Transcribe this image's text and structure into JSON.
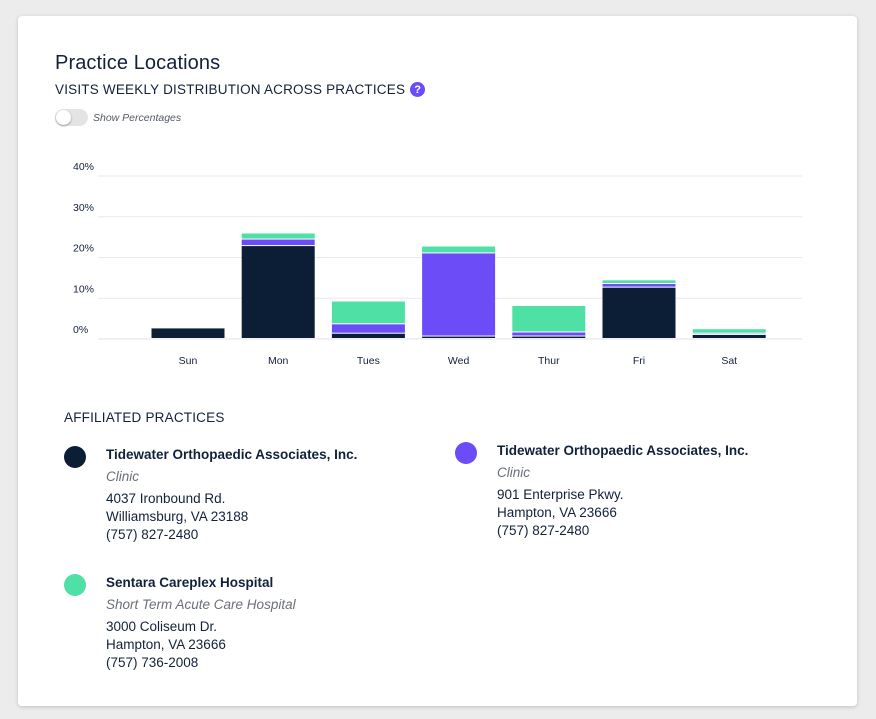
{
  "header": {
    "title": "Practice Locations",
    "subtitle": "VISITS WEEKLY DISTRIBUTION ACROSS PRACTICES",
    "help_glyph": "?",
    "help_icon": "question-circle-icon",
    "toggle_label": "Show Percentages",
    "toggle_on": false
  },
  "colors": {
    "navy": "#0b1e36",
    "purple": "#6b4cf6",
    "green": "#4fe0a5",
    "grid": "#e6e8ec"
  },
  "chart_data": {
    "type": "bar",
    "stacked": true,
    "categories": [
      "Sun",
      "Mon",
      "Tues",
      "Wed",
      "Thur",
      "Fri",
      "Sat"
    ],
    "yticks": [
      "40%",
      "30%",
      "20%",
      "10%",
      "0%"
    ],
    "ylim": [
      0,
      40
    ],
    "grid": true,
    "series": [
      {
        "color": "#0b1e36",
        "values": [
          2.6,
          22.8,
          1.3,
          0.6,
          0.6,
          12.6,
          1.0
        ]
      },
      {
        "color": "#6b4cf6",
        "values": [
          0.0,
          1.6,
          2.3,
          20.4,
          1.0,
          0.9,
          0.3
        ]
      },
      {
        "color": "#4fe0a5",
        "values": [
          0.0,
          1.5,
          5.6,
          1.7,
          6.5,
          0.9,
          1.1
        ]
      }
    ]
  },
  "affiliated": {
    "heading": "AFFILIATED PRACTICES",
    "practices": [
      {
        "color": "#0b1e36",
        "name": "Tidewater Orthopaedic Associates, Inc.",
        "type": "Clinic",
        "address1": "4037 Ironbound Rd.",
        "address2": "Williamsburg, VA 23188",
        "phone": "(757) 827-2480"
      },
      {
        "color": "#6b4cf6",
        "name": "Tidewater Orthopaedic Associates, Inc.",
        "type": "Clinic",
        "address1": "901 Enterprise Pkwy.",
        "address2": "Hampton, VA 23666",
        "phone": "(757) 827-2480"
      },
      {
        "color": "#4fe0a5",
        "name": "Sentara Careplex Hospital",
        "type": "Short Term Acute Care Hospital",
        "address1": "3000 Coliseum Dr.",
        "address2": "Hampton, VA 23666",
        "phone": "(757) 736-2008"
      }
    ]
  }
}
